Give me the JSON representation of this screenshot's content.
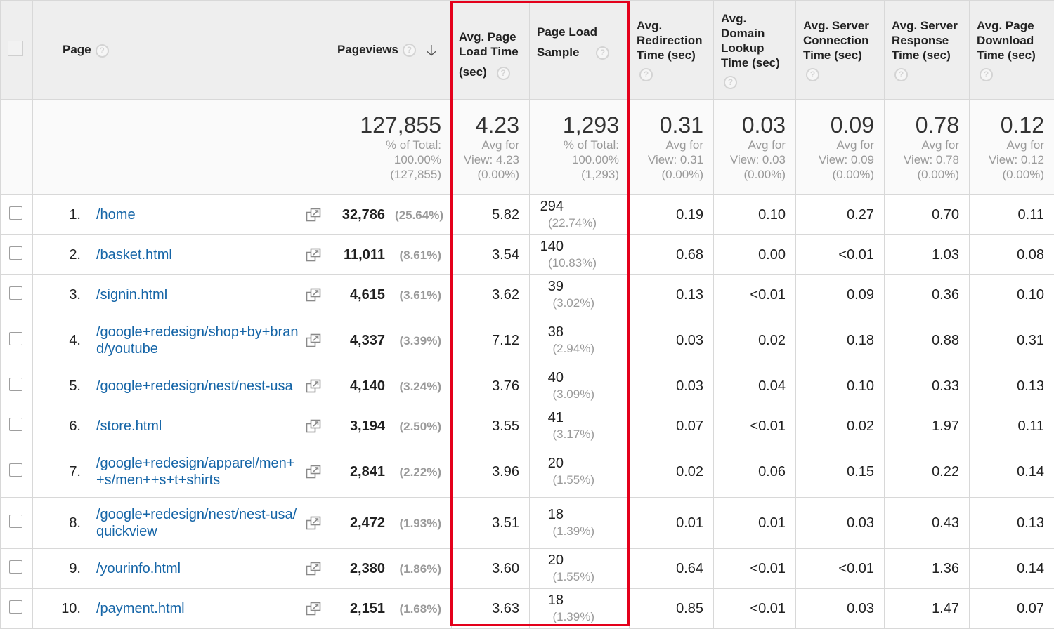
{
  "header": {
    "page": "Page",
    "pageviews": "Pageviews",
    "avg_page_load_time": "Avg. Page Load Time",
    "avg_page_load_time_unit": "(sec)",
    "page_load_sample": "Page Load Sample",
    "avg_redirection_time": "Avg. Redirection Time (sec)",
    "avg_domain_lookup_time": "Avg. Domain Lookup Time (sec)",
    "avg_server_connection_time": "Avg. Server Connection Time (sec)",
    "avg_server_response_time": "Avg. Server Response Time (sec)",
    "avg_page_download_time": "Avg. Page Download Time (sec)",
    "help_glyph": "?",
    "sort_glyph": "🡣"
  },
  "totals": {
    "pageviews": {
      "value": "127,855",
      "l1": "% of Total:",
      "l2": "100.00%",
      "l3": "(127,855)"
    },
    "load_time": {
      "value": "4.23",
      "l1": "Avg for",
      "l2": "View: 4.23",
      "l3": "(0.00%)"
    },
    "sample": {
      "value": "1,293",
      "l1": "% of Total:",
      "l2": "100.00%",
      "l3": "(1,293)"
    },
    "redirection": {
      "value": "0.31",
      "l1": "Avg for",
      "l2": "View: 0.31",
      "l3": "(0.00%)"
    },
    "domain": {
      "value": "0.03",
      "l1": "Avg for",
      "l2": "View: 0.03",
      "l3": "(0.00%)"
    },
    "connection": {
      "value": "0.09",
      "l1": "Avg for",
      "l2": "View: 0.09",
      "l3": "(0.00%)"
    },
    "response": {
      "value": "0.78",
      "l1": "Avg for",
      "l2": "View: 0.78",
      "l3": "(0.00%)"
    },
    "download": {
      "value": "0.12",
      "l1": "Avg for",
      "l2": "View: 0.12",
      "l3": "(0.00%)"
    }
  },
  "rows": [
    {
      "rank": "1.",
      "page": "/home",
      "pageviews": "32,786",
      "pv_pct": "(25.64%)",
      "load_time": "5.82",
      "sample": "294",
      "sample_pct": "(22.74%)",
      "redirection": "0.19",
      "domain": "0.10",
      "connection": "0.27",
      "response": "0.70",
      "download": "0.11"
    },
    {
      "rank": "2.",
      "page": "/basket.html",
      "pageviews": "11,011",
      "pv_pct": "(8.61%)",
      "load_time": "3.54",
      "sample": "140",
      "sample_pct": "(10.83%)",
      "redirection": "0.68",
      "domain": "0.00",
      "connection": "<0.01",
      "response": "1.03",
      "download": "0.08"
    },
    {
      "rank": "3.",
      "page": "/signin.html",
      "pageviews": "4,615",
      "pv_pct": "(3.61%)",
      "load_time": "3.62",
      "sample": "39",
      "sample_pct": "(3.02%)",
      "redirection": "0.13",
      "domain": "<0.01",
      "connection": "0.09",
      "response": "0.36",
      "download": "0.10"
    },
    {
      "rank": "4.",
      "page": "/google+redesign/shop+by+brand/youtube",
      "pageviews": "4,337",
      "pv_pct": "(3.39%)",
      "load_time": "7.12",
      "sample": "38",
      "sample_pct": "(2.94%)",
      "redirection": "0.03",
      "domain": "0.02",
      "connection": "0.18",
      "response": "0.88",
      "download": "0.31"
    },
    {
      "rank": "5.",
      "page": "/google+redesign/nest/nest-usa",
      "pageviews": "4,140",
      "pv_pct": "(3.24%)",
      "load_time": "3.76",
      "sample": "40",
      "sample_pct": "(3.09%)",
      "redirection": "0.03",
      "domain": "0.04",
      "connection": "0.10",
      "response": "0.33",
      "download": "0.13"
    },
    {
      "rank": "6.",
      "page": "/store.html",
      "pageviews": "3,194",
      "pv_pct": "(2.50%)",
      "load_time": "3.55",
      "sample": "41",
      "sample_pct": "(3.17%)",
      "redirection": "0.07",
      "domain": "<0.01",
      "connection": "0.02",
      "response": "1.97",
      "download": "0.11"
    },
    {
      "rank": "7.",
      "page": "/google+redesign/apparel/men++s/men++s+t+shirts",
      "pageviews": "2,841",
      "pv_pct": "(2.22%)",
      "load_time": "3.96",
      "sample": "20",
      "sample_pct": "(1.55%)",
      "redirection": "0.02",
      "domain": "0.06",
      "connection": "0.15",
      "response": "0.22",
      "download": "0.14"
    },
    {
      "rank": "8.",
      "page": "/google+redesign/nest/nest-usa/quickview",
      "pageviews": "2,472",
      "pv_pct": "(1.93%)",
      "load_time": "3.51",
      "sample": "18",
      "sample_pct": "(1.39%)",
      "redirection": "0.01",
      "domain": "0.01",
      "connection": "0.03",
      "response": "0.43",
      "download": "0.13"
    },
    {
      "rank": "9.",
      "page": "/yourinfo.html",
      "pageviews": "2,380",
      "pv_pct": "(1.86%)",
      "load_time": "3.60",
      "sample": "20",
      "sample_pct": "(1.55%)",
      "redirection": "0.64",
      "domain": "<0.01",
      "connection": "<0.01",
      "response": "1.36",
      "download": "0.14"
    },
    {
      "rank": "10.",
      "page": "/payment.html",
      "pageviews": "2,151",
      "pv_pct": "(1.68%)",
      "load_time": "3.63",
      "sample": "18",
      "sample_pct": "(1.39%)",
      "redirection": "0.85",
      "domain": "<0.01",
      "connection": "0.03",
      "response": "1.47",
      "download": "0.07"
    }
  ],
  "colors": {
    "link": "#1565a7",
    "highlight": "#e4001b",
    "header_bg": "#eeeeee"
  }
}
